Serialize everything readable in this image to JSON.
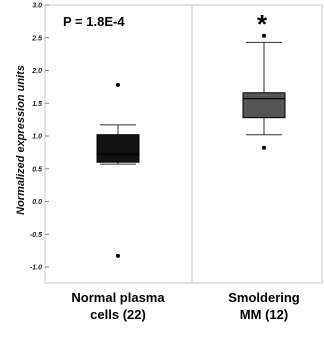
{
  "chart_data": {
    "type": "boxplot",
    "ylabel": "Normalized expression units",
    "ylim": [
      -1.1,
      3.0
    ],
    "yticks": [
      "3.0",
      "2.5",
      "2.0",
      "1.5",
      "1.0",
      "0.5",
      "0.0",
      "-0.5",
      "-1.0"
    ],
    "ytick_values": [
      3.0,
      2.5,
      2.0,
      1.5,
      1.0,
      0.5,
      0.0,
      -0.5,
      -1.0
    ],
    "grid": false,
    "annotation": "P = 1.8E-4",
    "significance_marker": "*",
    "groups": [
      {
        "label_lines": [
          "Normal plasma",
          "cells (22)"
        ],
        "whisker_low": 0.57,
        "q1": 0.6,
        "median": 0.72,
        "q3": 1.02,
        "whisker_high": 1.17,
        "outliers": [
          1.78,
          -0.83
        ],
        "color": "#111111"
      },
      {
        "label_lines": [
          "Smoldering",
          "MM (12)"
        ],
        "whisker_low": 1.02,
        "q1": 1.28,
        "median": 1.57,
        "q3": 1.66,
        "whisker_high": 2.43,
        "outliers": [
          2.53,
          0.82
        ],
        "color": "#555555"
      }
    ]
  }
}
